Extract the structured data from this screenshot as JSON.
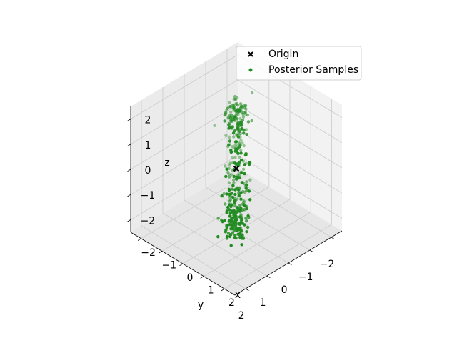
{
  "chart_data": {
    "type": "scatter",
    "title": "",
    "xlabel": "x",
    "ylabel": "y",
    "zlabel": "z",
    "xlim": [
      -2.5,
      2.5
    ],
    "ylim": [
      -2.5,
      2.5
    ],
    "zlim": [
      -2.5,
      2.5
    ],
    "grid": true,
    "legend_position": "top-right",
    "x_ticks": [
      {
        "value": -2,
        "label": "−2"
      },
      {
        "value": -1,
        "label": "−1"
      },
      {
        "value": 0,
        "label": "0"
      },
      {
        "value": 1,
        "label": "1"
      },
      {
        "value": 2,
        "label": "2"
      }
    ],
    "y_ticks": [
      {
        "value": -2,
        "label": "−2"
      },
      {
        "value": -1,
        "label": "−1"
      },
      {
        "value": 0,
        "label": "0"
      },
      {
        "value": 1,
        "label": "1"
      },
      {
        "value": 2,
        "label": "2"
      }
    ],
    "z_ticks": [
      {
        "value": -2,
        "label": "−2"
      },
      {
        "value": -1,
        "label": "−1"
      },
      {
        "value": 0,
        "label": "0"
      },
      {
        "value": 1,
        "label": "1"
      },
      {
        "value": 2,
        "label": "2"
      }
    ],
    "series": [
      {
        "name": "Origin",
        "marker": "x",
        "color": "#000000",
        "points": [
          [
            0,
            0,
            0
          ]
        ]
      },
      {
        "name": "Posterior Samples",
        "marker": "o",
        "color": "#228b22",
        "distribution": "ring",
        "radius": 2.0,
        "spread": 0.2,
        "ring_plane_normal": [
          0.72,
          -0.72,
          0.0
        ],
        "count": 400
      }
    ]
  }
}
